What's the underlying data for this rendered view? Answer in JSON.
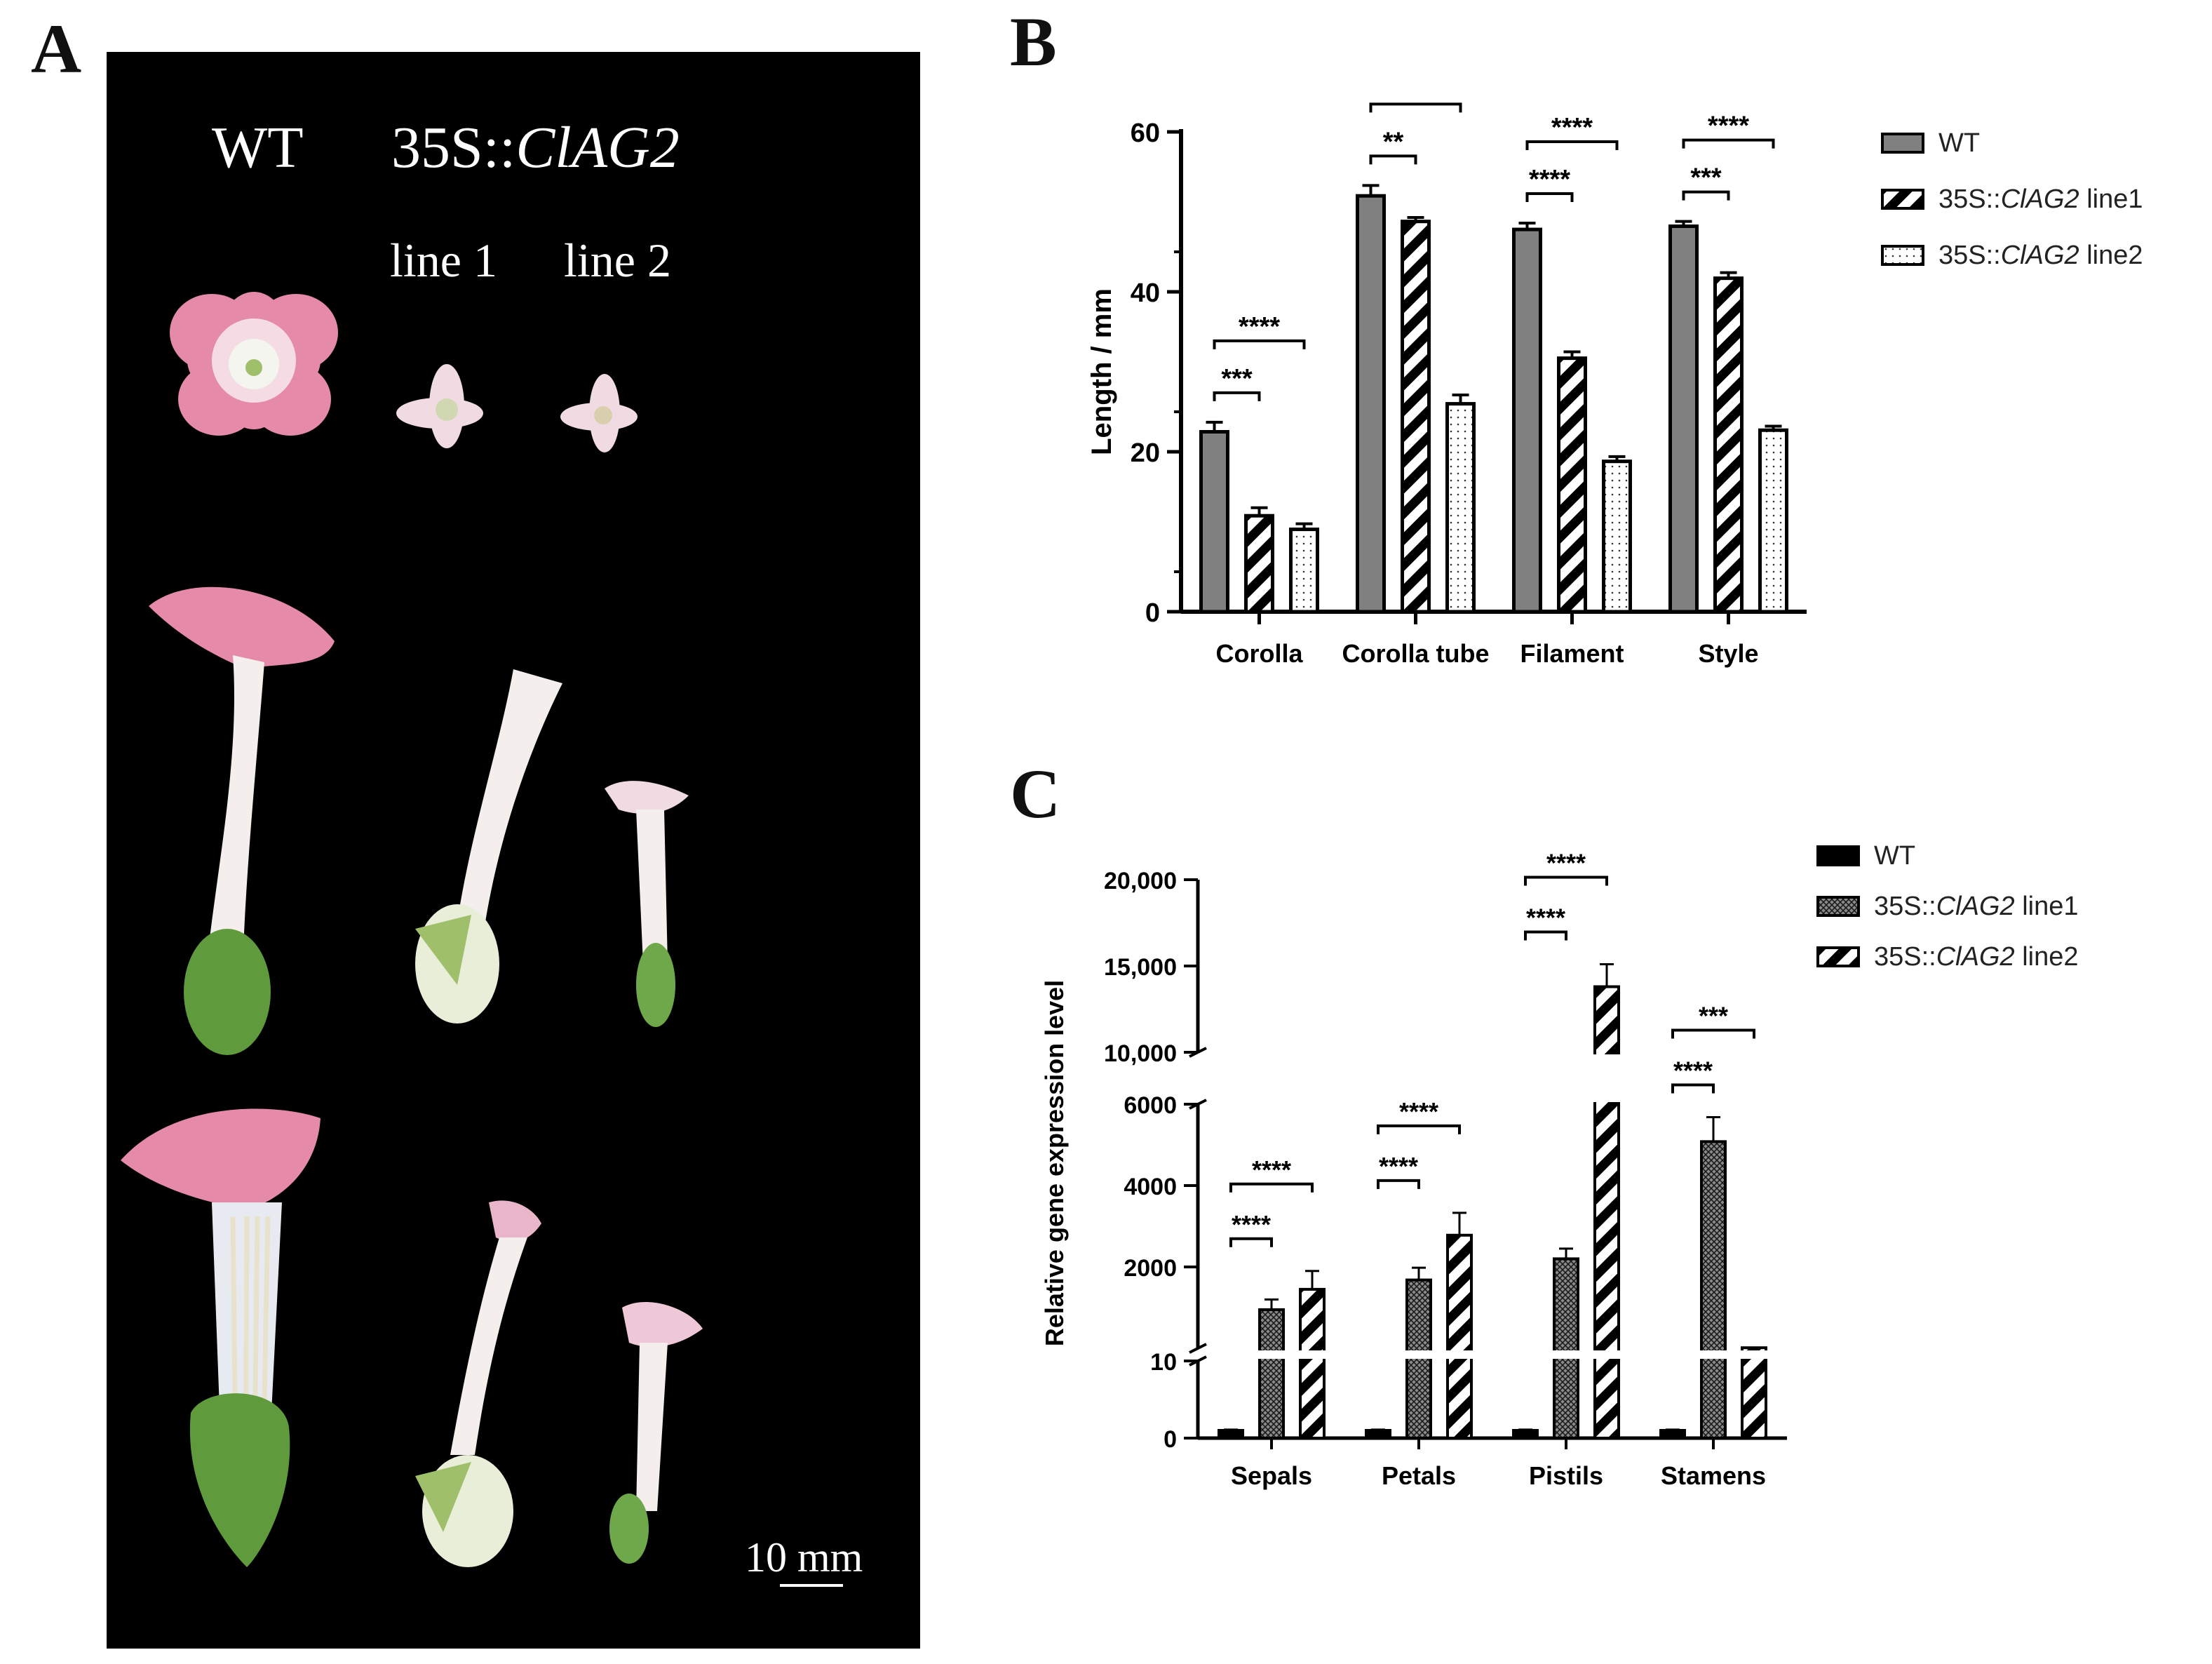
{
  "panels": {
    "a": "A",
    "b": "B",
    "c": "C"
  },
  "photo": {
    "wt_label": "WT",
    "transgenic_prefix": "35S::",
    "transgenic_gene": "ClAG2",
    "line1_label": "line 1",
    "line2_label": "line 2",
    "scale_bar_label": "10 mm"
  },
  "colors": {
    "wt_bar": "#808080",
    "background_photo": "#000000",
    "petal_pink": "#e58aa8",
    "sepal_green": "#5f9a3c"
  },
  "chart_data": [
    {
      "id": "B",
      "type": "bar",
      "categories": [
        "Corolla",
        "Corolla tube",
        "Filament",
        "Style"
      ],
      "ylabel": "Length / mm",
      "ylim": [
        0,
        60
      ],
      "yticks": [
        "0",
        "20",
        "40",
        "60"
      ],
      "legend": "top-right",
      "series": [
        {
          "name": "WT",
          "prefix": "",
          "gene": "",
          "suffix": "",
          "pattern": "grey-solid",
          "values": [
            22.5,
            52,
            47.8,
            48.2
          ],
          "errors": [
            1.2,
            1.3,
            0.8,
            0.6
          ]
        },
        {
          "name": "35S::ClAG2 line1",
          "prefix": "35S::",
          "gene": "ClAG2",
          "suffix": " line1",
          "pattern": "diagonal-stripes",
          "values": [
            12,
            48.8,
            31.7,
            41.7
          ],
          "errors": [
            1.0,
            0.5,
            0.8,
            0.7
          ]
        },
        {
          "name": "35S::ClAG2 line2",
          "prefix": "35S::",
          "gene": "ClAG2",
          "suffix": " line2",
          "pattern": "dots",
          "values": [
            10.3,
            26,
            18.8,
            22.7
          ],
          "errors": [
            0.7,
            1.1,
            0.6,
            0.5
          ]
        }
      ],
      "significance": [
        {
          "group": 0,
          "from": 0,
          "to": 1,
          "label": "***",
          "level": 1
        },
        {
          "group": 0,
          "from": 0,
          "to": 2,
          "label": "****",
          "level": 2
        },
        {
          "group": 1,
          "from": 0,
          "to": 1,
          "label": "**",
          "level": 1
        },
        {
          "group": 1,
          "from": 0,
          "to": 2,
          "label": "****",
          "level": 2
        },
        {
          "group": 2,
          "from": 0,
          "to": 1,
          "label": "****",
          "level": 1
        },
        {
          "group": 2,
          "from": 0,
          "to": 2,
          "label": "****",
          "level": 2
        },
        {
          "group": 3,
          "from": 0,
          "to": 1,
          "label": "***",
          "level": 1
        },
        {
          "group": 3,
          "from": 0,
          "to": 2,
          "label": "****",
          "level": 2
        }
      ]
    },
    {
      "id": "C",
      "type": "bar",
      "categories": [
        "Sepals",
        "Petals",
        "Pistils",
        "Stamens"
      ],
      "ylabel": "Relative gene expression level",
      "y_axis_segments": [
        {
          "range": [
            0,
            10
          ],
          "ticks": [
            "0",
            "10"
          ]
        },
        {
          "range": [
            0,
            6000
          ],
          "ticks": [
            "2000",
            "4000",
            "6000"
          ]
        },
        {
          "range": [
            10000,
            20000
          ],
          "ticks": [
            "10,000",
            "15,000",
            "20,000"
          ]
        }
      ],
      "legend": "top-right",
      "series": [
        {
          "name": "WT",
          "prefix": "",
          "gene": "",
          "suffix": "",
          "pattern": "black-solid",
          "values": [
            1,
            1,
            1,
            1
          ],
          "errors": [
            0.1,
            0.1,
            0.1,
            0.1
          ]
        },
        {
          "name": "35S::ClAG2 line1",
          "prefix": "35S::",
          "gene": "ClAG2",
          "suffix": " line1",
          "pattern": "crosshatch",
          "values": [
            950,
            1680,
            2200,
            5080
          ],
          "errors": [
            250,
            300,
            250,
            600
          ]
        },
        {
          "name": "35S::ClAG2 line2",
          "prefix": "35S::",
          "gene": "ClAG2",
          "suffix": " line2",
          "pattern": "diagonal-stripes",
          "values": [
            1450,
            2780,
            13800,
            14
          ],
          "errors": [
            450,
            550,
            1300,
            1
          ]
        }
      ],
      "significance": [
        {
          "group": 0,
          "from": 0,
          "to": 1,
          "label": "****",
          "level": 1
        },
        {
          "group": 0,
          "from": 0,
          "to": 2,
          "label": "****",
          "level": 2
        },
        {
          "group": 1,
          "from": 0,
          "to": 1,
          "label": "****",
          "level": 1
        },
        {
          "group": 1,
          "from": 0,
          "to": 2,
          "label": "****",
          "level": 2
        },
        {
          "group": 2,
          "from": 0,
          "to": 1,
          "label": "****",
          "level": 1
        },
        {
          "group": 2,
          "from": 0,
          "to": 2,
          "label": "****",
          "level": 2
        },
        {
          "group": 3,
          "from": 0,
          "to": 1,
          "label": "****",
          "level": 1
        },
        {
          "group": 3,
          "from": 0,
          "to": 2,
          "label": "***",
          "level": 2
        }
      ]
    }
  ]
}
